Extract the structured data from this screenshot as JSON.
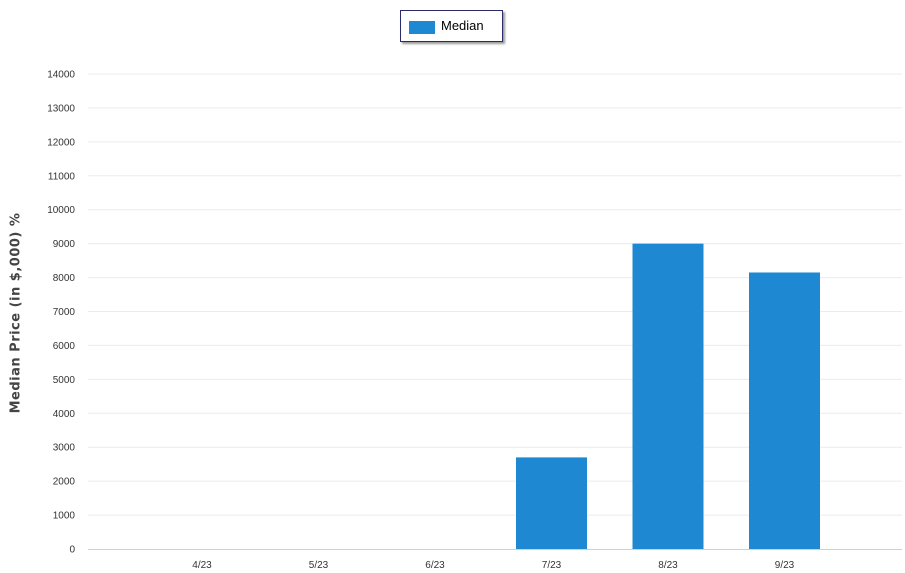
{
  "chart_data": {
    "type": "bar",
    "categories": [
      "4/23",
      "5/23",
      "6/23",
      "7/23",
      "8/23",
      "9/23"
    ],
    "series": [
      {
        "name": "Median",
        "values": [
          0,
          0,
          0,
          2700,
          9000,
          8150
        ],
        "color": "#1e88d2"
      }
    ],
    "ylabel": "Median Price (in $,000) %",
    "xlabel": "",
    "ylim": [
      0,
      14000
    ],
    "yticks": [
      0,
      1000,
      2000,
      3000,
      4000,
      5000,
      6000,
      7000,
      8000,
      9000,
      10000,
      11000,
      12000,
      13000,
      14000
    ],
    "grid": true,
    "legend_position": "top-center"
  }
}
